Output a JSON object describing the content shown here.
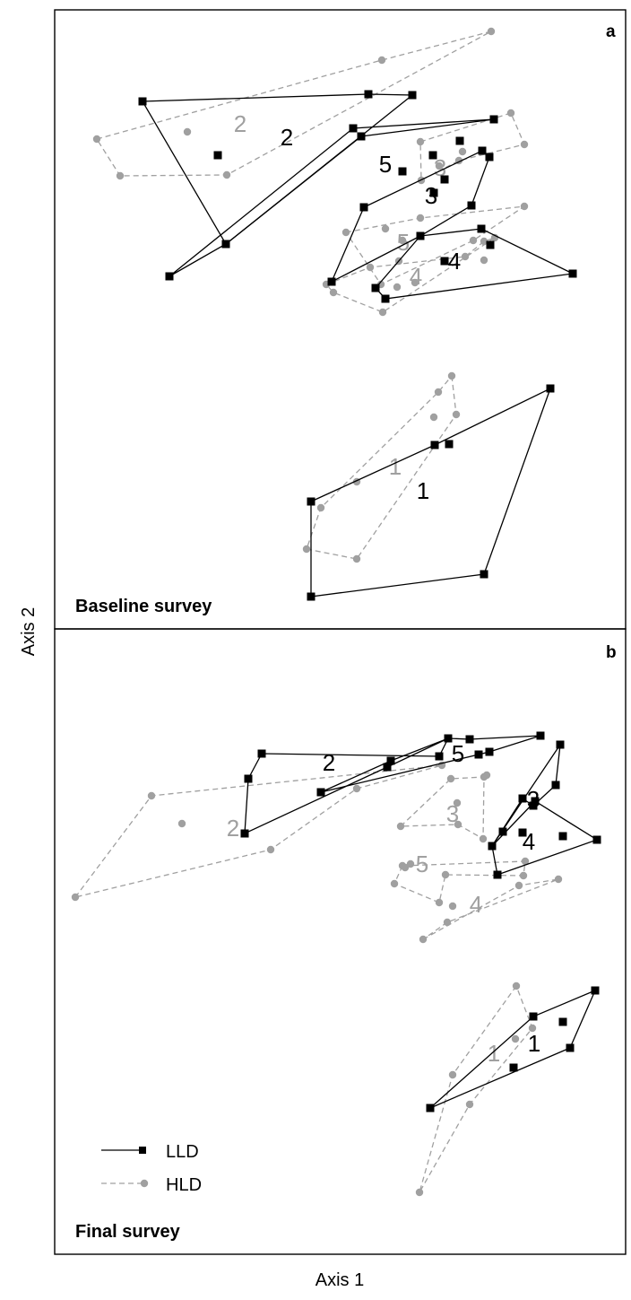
{
  "chart_data": {
    "type": "scatter",
    "xlabel": "Axis 1",
    "ylabel": "Axis 2",
    "styles": {
      "LLD": {
        "color": "#000000",
        "line": "solid",
        "marker": "square"
      },
      "HLD": {
        "color": "#a0a0a0",
        "line": "dashed",
        "marker": "circle"
      }
    },
    "legend": {
      "placement": "bottom-left",
      "entries": [
        "LLD",
        "HLD"
      ]
    },
    "panels": [
      {
        "letter": "a",
        "title": "Baseline survey",
        "series": [
          {
            "name": "LLD",
            "group": "2",
            "hull": [
              [
                159,
                113
              ],
              [
                411,
                105
              ],
              [
                460,
                106
              ],
              [
                252,
                272
              ]
            ],
            "points": [
              [
                243,
                173
              ]
            ],
            "label": [
              320,
              155
            ]
          },
          {
            "name": "LLD",
            "group": "5",
            "hull": [
              [
                189,
                308
              ],
              [
                394,
                143
              ],
              [
                551,
                133
              ],
              [
                403,
                152
              ],
              [
                252,
                272
              ]
            ],
            "points": [
              [
                483,
                173
              ],
              [
                513,
                157
              ],
              [
                449,
                191
              ]
            ],
            "label": [
              430,
              185
            ]
          },
          {
            "name": "LLD",
            "group": "3",
            "hull": [
              [
                406,
                231
              ],
              [
                370,
                314
              ],
              [
                469,
                263
              ],
              [
                526,
                229
              ],
              [
                546,
                175
              ],
              [
                538,
                168
              ]
            ],
            "points": [
              [
                496,
                200
              ],
              [
                484,
                215
              ]
            ],
            "label": [
              481,
              220
            ]
          },
          {
            "name": "LLD",
            "group": "4",
            "hull": [
              [
                469,
                263
              ],
              [
                537,
                255
              ],
              [
                639,
                305
              ],
              [
                430,
                333
              ],
              [
                419,
                321
              ]
            ],
            "points": [
              [
                547,
                273
              ],
              [
                496,
                291
              ]
            ],
            "label": [
              507,
              293
            ]
          },
          {
            "name": "LLD",
            "group": "1",
            "hull": [
              [
                347,
                559
              ],
              [
                485,
                496
              ],
              [
                614,
                433
              ],
              [
                540,
                640
              ],
              [
                347,
                665
              ]
            ],
            "points": [
              [
                501,
                495
              ]
            ],
            "label": [
              472,
              549
            ]
          },
          {
            "name": "HLD",
            "group": "2",
            "hull": [
              [
                108,
                155
              ],
              [
                426,
                67
              ],
              [
                548,
                35
              ],
              [
                253,
                195
              ],
              [
                134,
                196
              ]
            ],
            "points": [
              [
                209,
                147
              ]
            ],
            "label": [
              268,
              140
            ]
          },
          {
            "name": "HLD",
            "group": "3",
            "hull": [
              [
                469,
                158
              ],
              [
                570,
                126
              ],
              [
                585,
                161
              ],
              [
                512,
                179
              ],
              [
                470,
                201
              ]
            ],
            "points": [
              [
                490,
                185
              ],
              [
                516,
                169
              ]
            ],
            "label": [
              491,
              189
            ]
          },
          {
            "name": "HLD",
            "group": "5",
            "hull": [
              [
                386,
                259
              ],
              [
                469,
                243
              ],
              [
                585,
                230
              ],
              [
                528,
                268
              ],
              [
                425,
                317
              ]
            ],
            "points": [
              [
                430,
                255
              ],
              [
                449,
                268
              ],
              [
                445,
                291
              ]
            ],
            "label": [
              450,
              272
            ]
          },
          {
            "name": "HLD",
            "group": "4",
            "hull": [
              [
                364,
                317
              ],
              [
                413,
                298
              ],
              [
                519,
                286
              ],
              [
                540,
                269
              ],
              [
                552,
                265
              ],
              [
                427,
                348
              ],
              [
                372,
                326
              ]
            ],
            "points": [
              [
                443,
                320
              ],
              [
                463,
                315
              ],
              [
                540,
                290
              ]
            ],
            "label": [
              464,
              310
            ]
          },
          {
            "name": "HLD",
            "group": "1",
            "hull": [
              [
                504,
                419
              ],
              [
                509,
                462
              ],
              [
                398,
                623
              ],
              [
                342,
                612
              ],
              [
                358,
                566
              ],
              [
                489,
                437
              ]
            ],
            "points": [
              [
                484,
                465
              ],
              [
                398,
                537
              ]
            ],
            "label": [
              441,
              522
            ]
          }
        ]
      },
      {
        "letter": "b",
        "title": "Final survey",
        "series": [
          {
            "name": "LLD",
            "group": "2",
            "hull": [
              [
                292,
                840
              ],
              [
                490,
                843
              ],
              [
                500,
                823
              ],
              [
                432,
                855
              ],
              [
                273,
                929
              ],
              [
                277,
                868
              ]
            ],
            "points": [],
            "label": [
              367,
              852
            ]
          },
          {
            "name": "LLD",
            "group": "5",
            "hull": [
              [
                358,
                883
              ],
              [
                436,
                848
              ],
              [
                500,
                823
              ],
              [
                524,
                824
              ],
              [
                603,
                820
              ],
              [
                546,
                838
              ],
              [
                534,
                841
              ]
            ],
            "points": [],
            "label": [
              511,
              842
            ]
          },
          {
            "name": "LLD",
            "group": "3",
            "hull": [
              [
                549,
                943
              ],
              [
                625,
                830
              ],
              [
                620,
                875
              ],
              [
                595,
                898
              ],
              [
                583,
                890
              ]
            ],
            "points": [],
            "label": [
              595,
              893
            ]
          },
          {
            "name": "LLD",
            "group": "4",
            "hull": [
              [
                555,
                975
              ],
              [
                549,
                943
              ],
              [
                597,
                893
              ],
              [
                666,
                936
              ]
            ],
            "points": [
              [
                583,
                928
              ],
              [
                628,
                932
              ],
              [
                561,
                927
              ]
            ],
            "label": [
              590,
              940
            ]
          },
          {
            "name": "LLD",
            "group": "1",
            "hull": [
              [
                480,
                1235
              ],
              [
                595,
                1133
              ],
              [
                664,
                1104
              ],
              [
                636,
                1168
              ]
            ],
            "points": [
              [
                628,
                1139
              ],
              [
                573,
                1190
              ]
            ],
            "label": [
              596,
              1165
            ]
          },
          {
            "name": "HLD",
            "group": "2",
            "hull": [
              [
                84,
                1000
              ],
              [
                169,
                887
              ],
              [
                493,
                853
              ],
              [
                398,
                879
              ],
              [
                302,
                947
              ]
            ],
            "points": [
              [
                203,
                918
              ]
            ],
            "label": [
              260,
              925
            ]
          },
          {
            "name": "HLD",
            "group": "3",
            "hull": [
              [
                447,
                921
              ],
              [
                503,
                868
              ],
              [
                540,
                866
              ],
              [
                539,
                935
              ],
              [
                511,
                919
              ]
            ],
            "points": [
              [
                510,
                895
              ],
              [
                543,
                864
              ]
            ],
            "label": [
              505,
              909
            ]
          },
          {
            "name": "HLD",
            "group": "5",
            "hull": [
              [
                449,
                965
              ],
              [
                440,
                985
              ],
              [
                490,
                1006
              ],
              [
                497,
                975
              ],
              [
                584,
                976
              ],
              [
                586,
                960
              ]
            ],
            "points": [
              [
                452,
                967
              ],
              [
                458,
                963
              ]
            ],
            "label": [
              471,
              965
            ]
          },
          {
            "name": "HLD",
            "group": "4",
            "hull": [
              [
                472,
                1047
              ],
              [
                579,
                987
              ],
              [
                623,
                980
              ],
              [
                499,
                1028
              ]
            ],
            "points": [
              [
                505,
                1010
              ]
            ],
            "label": [
              531,
              1010
            ]
          },
          {
            "name": "HLD",
            "group": "1",
            "hull": [
              [
                576,
                1099
              ],
              [
                505,
                1198
              ],
              [
                468,
                1329
              ],
              [
                524,
                1231
              ],
              [
                594,
                1146
              ]
            ],
            "points": [
              [
                575,
                1158
              ]
            ],
            "label": [
              551,
              1176
            ]
          }
        ]
      }
    ]
  }
}
